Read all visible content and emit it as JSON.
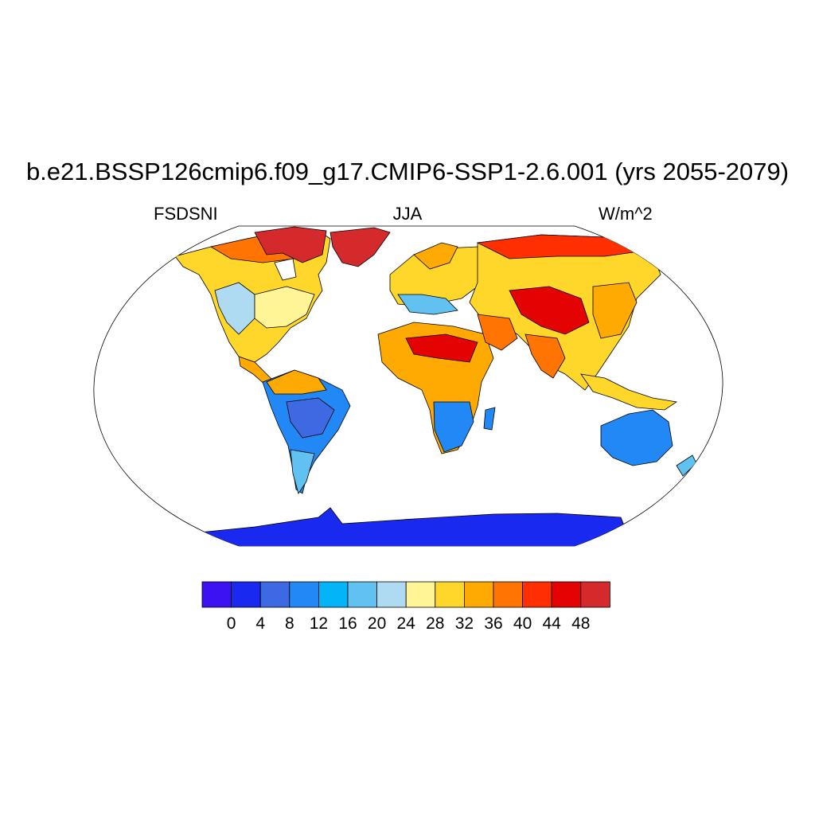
{
  "title": "b.e21.BSSP126cmip6.f09_g17.CMIP6-SSP1-2.6.001 (yrs 2055-2079)",
  "left_label": "FSDSNI",
  "center_label": "JJA",
  "right_label": "W/m^2",
  "colorbar": {
    "colors": [
      "#3d12f2",
      "#1a29ef",
      "#3d6ae2",
      "#2188f5",
      "#03b4f9",
      "#61c2f1",
      "#aedbf1",
      "#fff597",
      "#ffd72a",
      "#ffaa02",
      "#ff7402",
      "#ff2f02",
      "#e40303",
      "#d52a2b"
    ],
    "labels": [
      "0",
      "4",
      "8",
      "12",
      "16",
      "20",
      "24",
      "28",
      "32",
      "36",
      "40",
      "44",
      "48"
    ]
  }
}
